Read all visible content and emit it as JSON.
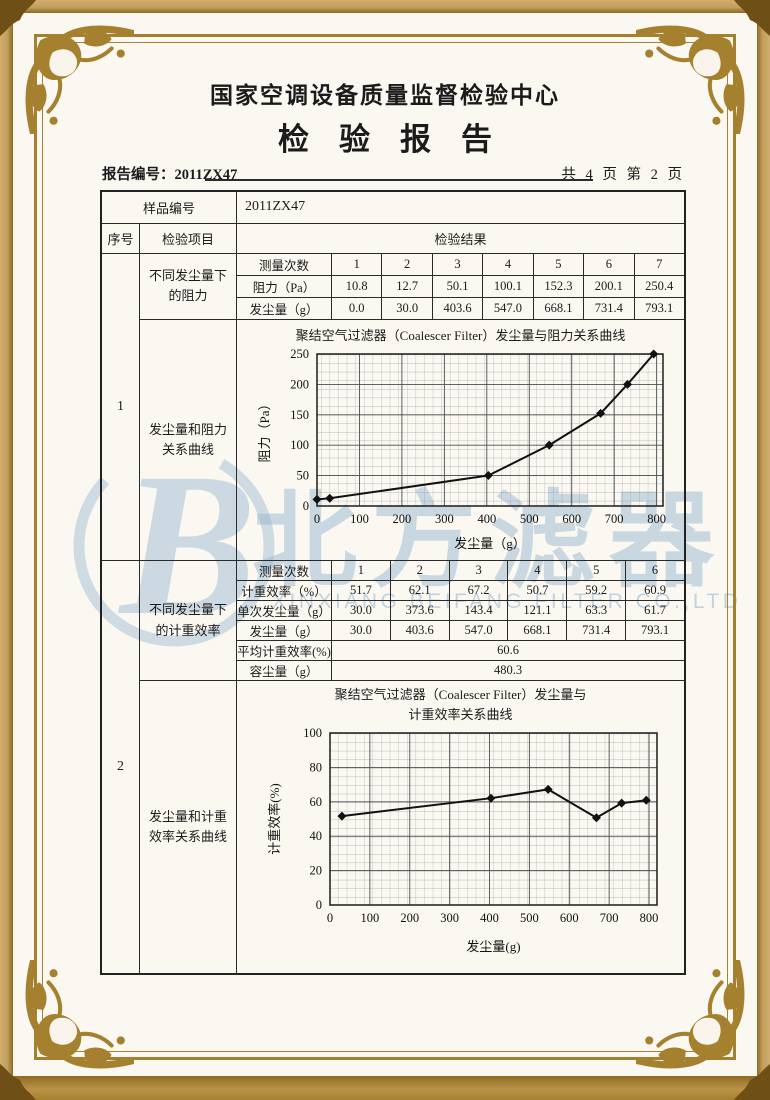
{
  "header": {
    "center_name": "国家空调设备质量监督检验中心",
    "report_title": "检验报告",
    "report_no": "报告编号：2011ZX47",
    "page_indicator": "共 4 页 第 2 页"
  },
  "sample_row": {
    "label": "样品编号",
    "value": "2011ZX47"
  },
  "columns": {
    "seq": "序号",
    "item": "检验项目",
    "result": "检验结果"
  },
  "item1": {
    "seq": "1",
    "label_table": "不同发尘量下的阻力",
    "label_chart": "发尘量和阻力关系曲线",
    "subtable": {
      "rows": [
        {
          "label": "测量次数",
          "values": [
            "1",
            "2",
            "3",
            "4",
            "5",
            "6",
            "7"
          ]
        },
        {
          "label": "阻力（Pa）",
          "values": [
            "10.8",
            "12.7",
            "50.1",
            "100.1",
            "152.3",
            "200.1",
            "250.4"
          ]
        },
        {
          "label": "发尘量（g）",
          "values": [
            "0.0",
            "30.0",
            "403.6",
            "547.0",
            "668.1",
            "731.4",
            "793.1"
          ]
        }
      ]
    }
  },
  "item2": {
    "seq": "2",
    "label_table": "不同发尘量下的计重效率",
    "label_chart": "发尘量和计重效率关系曲线",
    "subtable": {
      "rows": [
        {
          "label": "测量次数",
          "values": [
            "1",
            "2",
            "3",
            "4",
            "5",
            "6"
          ]
        },
        {
          "label": "计重效率（%）",
          "values": [
            "51.7",
            "62.1",
            "67.2",
            "50.7",
            "59.2",
            "60.9"
          ]
        },
        {
          "label": "单次发尘量（g）",
          "values": [
            "30.0",
            "373.6",
            "143.4",
            "121.1",
            "63.3",
            "61.7"
          ]
        },
        {
          "label": "发尘量（g）",
          "values": [
            "30.0",
            "403.6",
            "547.0",
            "668.1",
            "731.4",
            "793.1"
          ]
        }
      ],
      "summary": [
        {
          "label": "平均计重效率(%)",
          "value": "60.6"
        },
        {
          "label": "容尘量（g）",
          "value": "480.3"
        }
      ]
    }
  },
  "watermark": {
    "logo_letter": "B",
    "brand_text": "北方滤器",
    "company_text": "XINXIANG BEIFANG FILTER CO.,LTD",
    "color": "#98b7d0"
  },
  "frame_colors": {
    "gold": "#a5812f",
    "band_dark": "#8f6a22",
    "band_light": "#c2a05f"
  },
  "chart_data": [
    {
      "type": "line",
      "title": "聚结空气过滤器（Coalescer Filter）发尘量与阻力关系曲线",
      "xlabel": "发尘量（g）",
      "ylabel": "阻力（Pa）",
      "x": [
        0.0,
        30.0,
        403.6,
        547.0,
        668.1,
        731.4,
        793.1
      ],
      "y": [
        10.8,
        12.7,
        50.1,
        100.1,
        152.3,
        200.1,
        250.4
      ],
      "xlim": [
        0,
        815
      ],
      "ylim": [
        0,
        250
      ],
      "xticks": [
        0,
        100,
        200,
        300,
        400,
        500,
        600,
        700,
        800
      ],
      "yticks": [
        0,
        50,
        100,
        150,
        200,
        250
      ],
      "grid": true,
      "marker": "diamond",
      "line_color": "#111111"
    },
    {
      "type": "line",
      "title": "聚结空气过滤器（Coalescer Filter）发尘量与",
      "title2": "计重效率关系曲线",
      "xlabel": "发尘量(g)",
      "ylabel": "计重效率(%)",
      "x": [
        30.0,
        403.6,
        547.0,
        668.1,
        731.4,
        793.1
      ],
      "y": [
        51.7,
        62.1,
        67.2,
        50.7,
        59.2,
        60.9
      ],
      "xlim": [
        0,
        820
      ],
      "ylim": [
        0,
        100
      ],
      "xticks": [
        0,
        100,
        200,
        300,
        400,
        500,
        600,
        700,
        800
      ],
      "yticks": [
        0,
        20,
        40,
        60,
        80,
        100
      ],
      "grid": true,
      "marker": "diamond",
      "line_color": "#111111"
    }
  ]
}
